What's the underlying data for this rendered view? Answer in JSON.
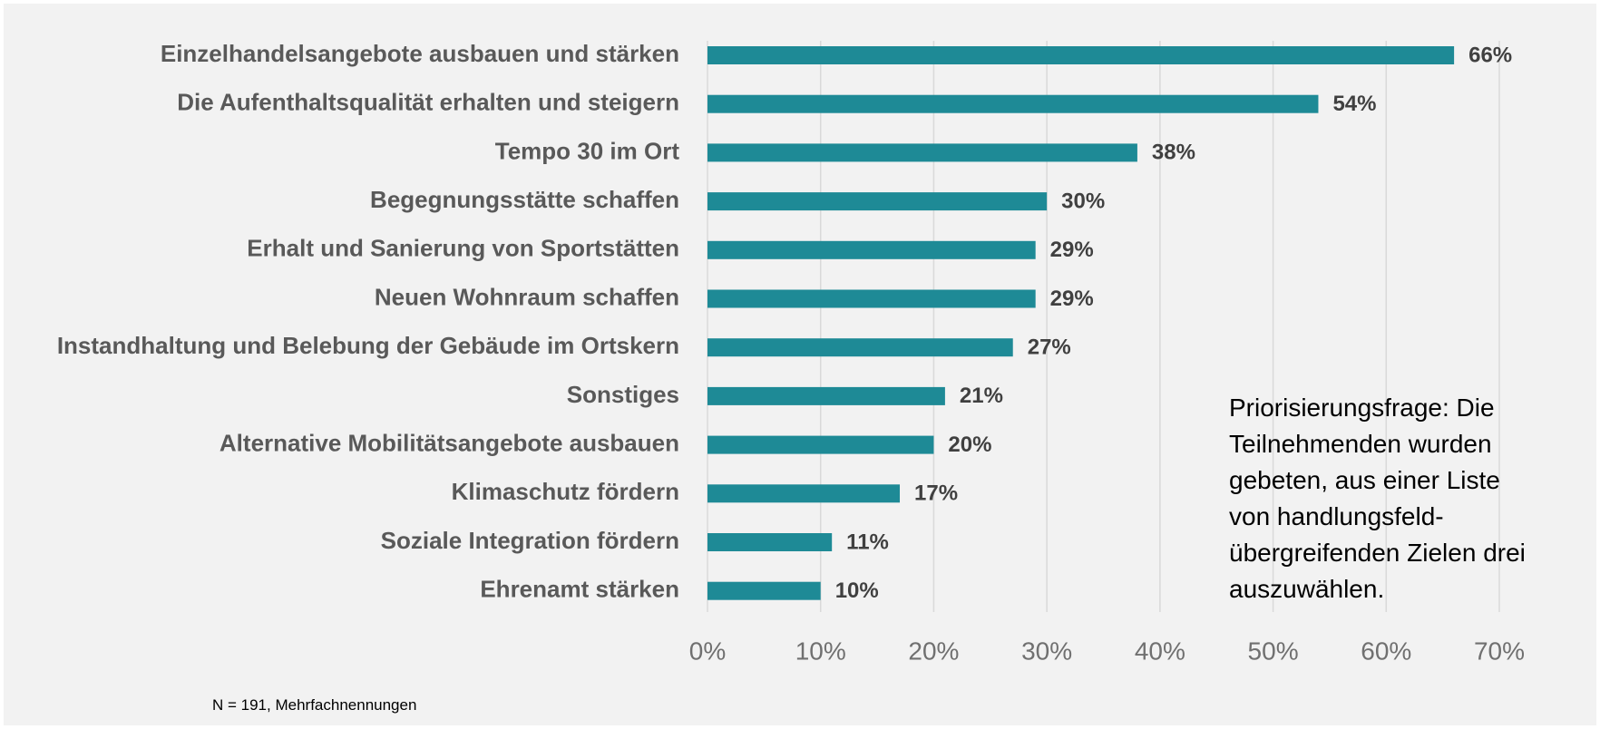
{
  "chart_data": {
    "type": "bar",
    "orientation": "horizontal",
    "categories": [
      "Einzelhandelsangebote ausbauen und stärken",
      "Die Aufenthaltsqualität erhalten und steigern",
      "Tempo 30 im Ort",
      "Begegnungsstätte schaffen",
      "Erhalt und Sanierung von Sportstätten",
      "Neuen Wohnraum schaffen",
      "Instandhaltung und Belebung der Gebäude im Ortskern",
      "Sonstiges",
      "Alternative Mobilitätsangebote ausbauen",
      "Klimaschutz fördern",
      "Soziale Integration fördern",
      "Ehrenamt stärken"
    ],
    "values": [
      66,
      54,
      38,
      30,
      29,
      29,
      27,
      21,
      20,
      17,
      11,
      10
    ],
    "value_labels": [
      "66%",
      "54%",
      "38%",
      "30%",
      "29%",
      "29%",
      "27%",
      "21%",
      "20%",
      "17%",
      "11%",
      "10%"
    ],
    "color": "#1e8a96",
    "xlim": [
      0,
      70
    ],
    "xticks": [
      {
        "value": 0,
        "label": "0%"
      },
      {
        "value": 10,
        "label": "10%"
      },
      {
        "value": 20,
        "label": "20%"
      },
      {
        "value": 30,
        "label": "30%"
      },
      {
        "value": 40,
        "label": "40%"
      },
      {
        "value": 50,
        "label": "50%"
      },
      {
        "value": 60,
        "label": "60%"
      },
      {
        "value": 70,
        "label": "70%"
      }
    ],
    "grid": true,
    "annotation": "Priorisierungsfrage: Die Teilnehmenden wurden gebeten, aus einer Liste von handlungsfeld-übergreifenden Zielen drei auszuwählen.",
    "footnote": "N = 191, Mehrfachnennungen"
  }
}
